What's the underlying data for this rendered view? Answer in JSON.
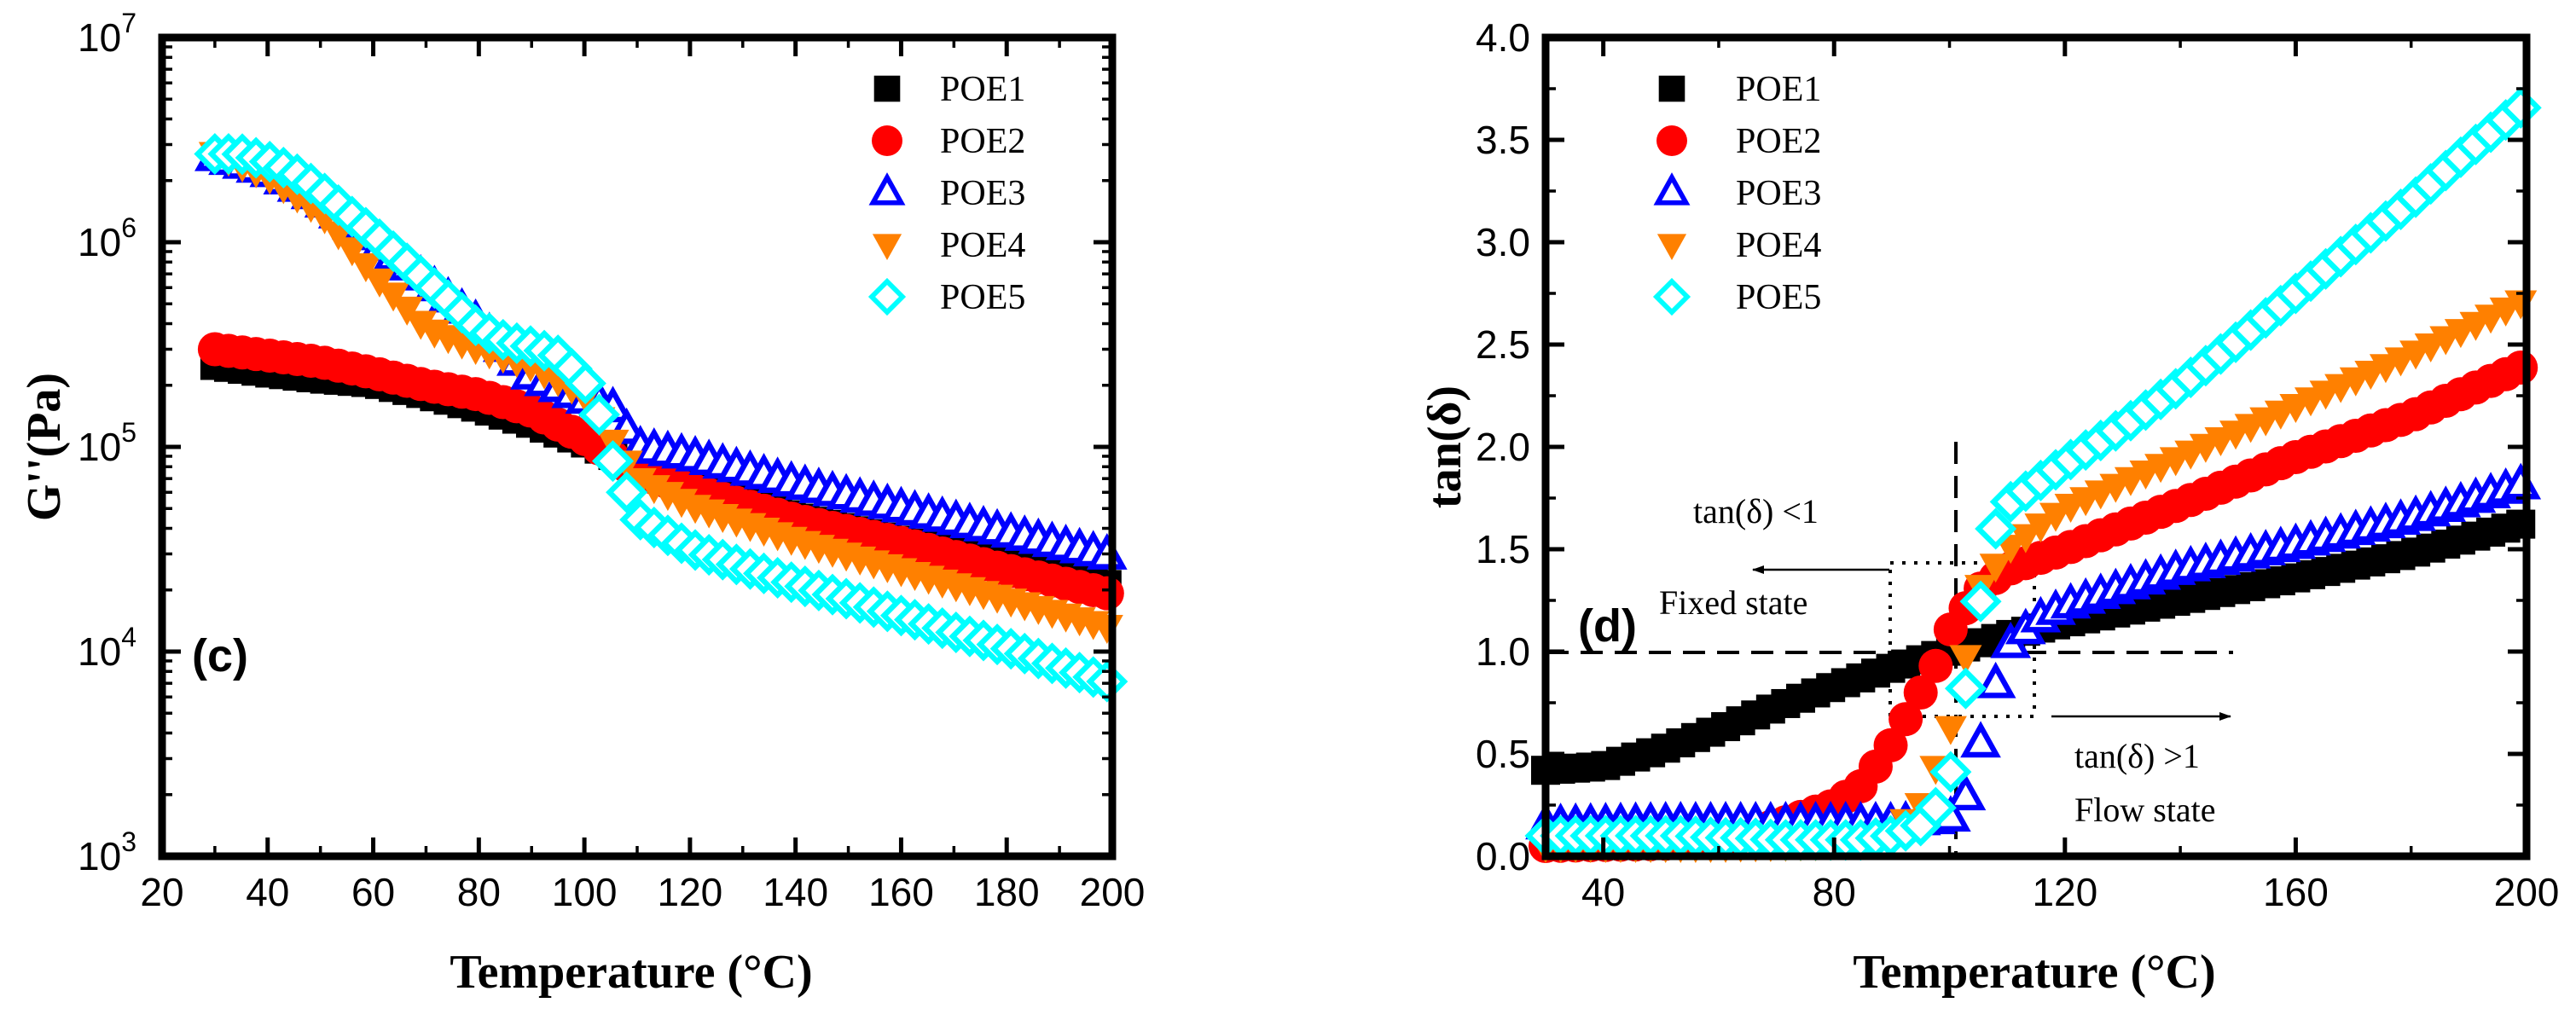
{
  "chart_data": [
    {
      "type": "scatter",
      "panel_label": "(c)",
      "title": "",
      "xlabel": "Temperature (°C)",
      "ylabel": "G''(Pa)",
      "yscale": "log",
      "xlim": [
        20,
        200
      ],
      "ylim": [
        1000,
        10000000
      ],
      "xticks": [
        "20",
        "40",
        "60",
        "80",
        "100",
        "120",
        "140",
        "160",
        "180",
        "200"
      ],
      "yticks": [
        {
          "base": "10",
          "exp": "3"
        },
        {
          "base": "10",
          "exp": "4"
        },
        {
          "base": "10",
          "exp": "5"
        },
        {
          "base": "10",
          "exp": "6"
        },
        {
          "base": "10",
          "exp": "7"
        }
      ],
      "legend_position": "top-right",
      "series": [
        {
          "name": "POE1",
          "marker": "square",
          "filled": true,
          "color": "#000000",
          "points": [
            [
              30,
              250000
            ],
            [
              40,
              230000
            ],
            [
              50,
              215000
            ],
            [
              60,
              205000
            ],
            [
              70,
              180000
            ],
            [
              80,
              155000
            ],
            [
              90,
              130000
            ],
            [
              100,
              105000
            ],
            [
              105,
              92000
            ],
            [
              110,
              78000
            ],
            [
              120,
              64000
            ],
            [
              140,
              46000
            ],
            [
              160,
              35000
            ],
            [
              180,
              27000
            ],
            [
              200,
              21000
            ]
          ]
        },
        {
          "name": "POE2",
          "marker": "circle",
          "filled": true,
          "color": "#ff0000",
          "points": [
            [
              30,
              300000
            ],
            [
              40,
              280000
            ],
            [
              50,
              260000
            ],
            [
              60,
              230000
            ],
            [
              70,
              200000
            ],
            [
              80,
              180000
            ],
            [
              90,
              150000
            ],
            [
              100,
              110000
            ],
            [
              105,
              90000
            ],
            [
              110,
              75000
            ],
            [
              120,
              62000
            ],
            [
              140,
              44000
            ],
            [
              160,
              34000
            ],
            [
              180,
              25000
            ],
            [
              200,
              19000
            ]
          ]
        },
        {
          "name": "POE3",
          "marker": "triangle-up",
          "filled": false,
          "color": "#0000ff",
          "points": [
            [
              30,
              2600000
            ],
            [
              40,
              2200000
            ],
            [
              50,
              1600000
            ],
            [
              60,
              1000000
            ],
            [
              70,
              650000
            ],
            [
              80,
              400000
            ],
            [
              90,
              220000
            ],
            [
              100,
              170000
            ],
            [
              105,
              160000
            ],
            [
              110,
              100000
            ],
            [
              120,
              90000
            ],
            [
              140,
              66000
            ],
            [
              160,
              50000
            ],
            [
              180,
              38000
            ],
            [
              200,
              29000
            ]
          ]
        },
        {
          "name": "POE4",
          "marker": "triangle-down",
          "filled": true,
          "color": "#ff8000",
          "points": [
            [
              30,
              2700000
            ],
            [
              40,
              2100000
            ],
            [
              50,
              1400000
            ],
            [
              60,
              700000
            ],
            [
              70,
              380000
            ],
            [
              80,
              300000
            ],
            [
              90,
              250000
            ],
            [
              100,
              180000
            ],
            [
              105,
              110000
            ],
            [
              110,
              70000
            ],
            [
              120,
              52000
            ],
            [
              140,
              35000
            ],
            [
              160,
              25000
            ],
            [
              180,
              18000
            ],
            [
              200,
              13000
            ]
          ]
        },
        {
          "name": "POE5",
          "marker": "diamond",
          "filled": false,
          "color": "#00ffff",
          "points": [
            [
              30,
              2700000
            ],
            [
              35,
              2700000
            ],
            [
              40,
              2500000
            ],
            [
              45,
              2200000
            ],
            [
              50,
              1800000
            ],
            [
              55,
              1400000
            ],
            [
              60,
              1100000
            ],
            [
              65,
              850000
            ],
            [
              70,
              650000
            ],
            [
              75,
              500000
            ],
            [
              80,
              380000
            ],
            [
              85,
              330000
            ],
            [
              90,
              310000
            ],
            [
              95,
              280000
            ],
            [
              100,
              210000
            ],
            [
              103,
              140000
            ],
            [
              105,
              90000
            ],
            [
              108,
              60000
            ],
            [
              110,
              45000
            ],
            [
              115,
              38000
            ],
            [
              120,
              32000
            ],
            [
              130,
              26000
            ],
            [
              140,
              21500
            ],
            [
              150,
              18000
            ],
            [
              160,
              15000
            ],
            [
              170,
              12500
            ],
            [
              180,
              10500
            ],
            [
              190,
              8500
            ],
            [
              200,
              7000
            ]
          ]
        }
      ]
    },
    {
      "type": "scatter",
      "panel_label": "(d)",
      "title": "",
      "xlabel": "Temperature (°C)",
      "ylabel": "tan(δ)",
      "yscale": "linear",
      "xlim": [
        30,
        200
      ],
      "ylim": [
        0,
        4
      ],
      "xticks": [
        "40",
        "80",
        "120",
        "160",
        "200"
      ],
      "yticks": [
        "0.0",
        "0.5",
        "1.0",
        "1.5",
        "2.0",
        "2.5",
        "3.0",
        "3.5",
        "4.0"
      ],
      "legend_position": "top-left",
      "reference_lines": {
        "y": 1.0,
        "x": 101
      },
      "annotations": {
        "left_condition": "tan(δ) <1",
        "left_state": "Fixed state",
        "right_condition": "tan(δ) >1",
        "right_state": "Flow state"
      },
      "series": [
        {
          "name": "POE1",
          "marker": "square",
          "filled": true,
          "color": "#000000",
          "points": [
            [
              30,
              0.42
            ],
            [
              40,
              0.44
            ],
            [
              50,
              0.52
            ],
            [
              60,
              0.62
            ],
            [
              70,
              0.73
            ],
            [
              80,
              0.83
            ],
            [
              90,
              0.92
            ],
            [
              100,
              1.0
            ],
            [
              110,
              1.08
            ],
            [
              120,
              1.14
            ],
            [
              140,
              1.25
            ],
            [
              160,
              1.36
            ],
            [
              180,
              1.48
            ],
            [
              200,
              1.63
            ]
          ]
        },
        {
          "name": "POE2",
          "marker": "circle",
          "filled": true,
          "color": "#ff0000",
          "points": [
            [
              30,
              0.05
            ],
            [
              50,
              0.06
            ],
            [
              60,
              0.08
            ],
            [
              70,
              0.15
            ],
            [
              80,
              0.25
            ],
            [
              85,
              0.35
            ],
            [
              90,
              0.55
            ],
            [
              95,
              0.8
            ],
            [
              98,
              0.95
            ],
            [
              100,
              1.1
            ],
            [
              105,
              1.3
            ],
            [
              110,
              1.4
            ],
            [
              120,
              1.5
            ],
            [
              140,
              1.72
            ],
            [
              160,
              1.95
            ],
            [
              180,
              2.15
            ],
            [
              200,
              2.4
            ]
          ]
        },
        {
          "name": "POE3",
          "marker": "triangle-up",
          "filled": false,
          "color": "#0000ff",
          "points": [
            [
              30,
              0.15
            ],
            [
              50,
              0.16
            ],
            [
              70,
              0.16
            ],
            [
              90,
              0.16
            ],
            [
              100,
              0.18
            ],
            [
              103,
              0.3
            ],
            [
              105,
              0.5
            ],
            [
              107,
              0.75
            ],
            [
              110,
              1.02
            ],
            [
              115,
              1.15
            ],
            [
              120,
              1.22
            ],
            [
              140,
              1.4
            ],
            [
              160,
              1.52
            ],
            [
              180,
              1.65
            ],
            [
              200,
              1.82
            ]
          ]
        },
        {
          "name": "POE4",
          "marker": "triangle-down",
          "filled": true,
          "color": "#ff8000",
          "points": [
            [
              30,
              0.05
            ],
            [
              60,
              0.05
            ],
            [
              80,
              0.06
            ],
            [
              90,
              0.1
            ],
            [
              95,
              0.25
            ],
            [
              100,
              0.6
            ],
            [
              103,
              1.0
            ],
            [
              105,
              1.3
            ],
            [
              110,
              1.5
            ],
            [
              120,
              1.7
            ],
            [
              140,
              1.95
            ],
            [
              160,
              2.2
            ],
            [
              180,
              2.45
            ],
            [
              200,
              2.72
            ]
          ]
        },
        {
          "name": "POE5",
          "marker": "diamond",
          "filled": false,
          "color": "#00ffff",
          "points": [
            [
              30,
              0.1
            ],
            [
              35,
              0.1
            ],
            [
              40,
              0.1
            ],
            [
              45,
              0.1
            ],
            [
              50,
              0.1
            ],
            [
              55,
              0.1
            ],
            [
              60,
              0.09
            ],
            [
              65,
              0.09
            ],
            [
              70,
              0.08
            ],
            [
              75,
              0.08
            ],
            [
              80,
              0.08
            ],
            [
              85,
              0.08
            ],
            [
              90,
              0.1
            ],
            [
              95,
              0.15
            ],
            [
              98,
              0.25
            ],
            [
              100,
              0.38
            ],
            [
              102,
              0.7
            ],
            [
              104,
              1.0
            ],
            [
              106,
              1.35
            ],
            [
              108,
              1.6
            ],
            [
              110,
              1.72
            ],
            [
              115,
              1.82
            ],
            [
              120,
              1.92
            ],
            [
              130,
              2.1
            ],
            [
              140,
              2.3
            ],
            [
              150,
              2.52
            ],
            [
              160,
              2.75
            ],
            [
              170,
              2.98
            ],
            [
              180,
              3.2
            ],
            [
              190,
              3.45
            ],
            [
              200,
              3.68
            ]
          ]
        }
      ]
    }
  ]
}
